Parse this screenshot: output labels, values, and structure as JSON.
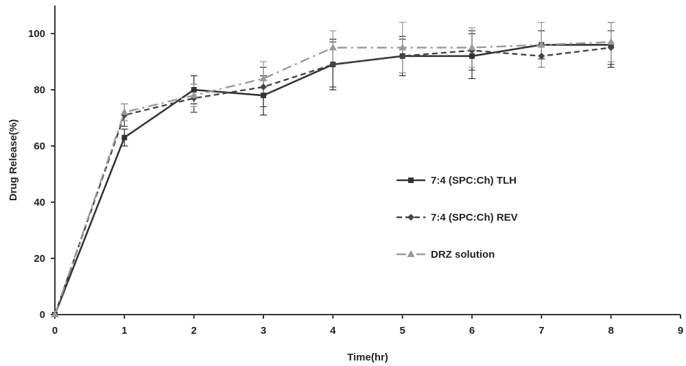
{
  "chart_data": {
    "type": "line",
    "title": "",
    "xlabel": "Time(hr)",
    "ylabel": "Drug Release(%)",
    "xlim": [
      0,
      9
    ],
    "ylim": [
      0,
      110
    ],
    "xticks": [
      0,
      1,
      2,
      3,
      4,
      5,
      6,
      7,
      8,
      9
    ],
    "yticks": [
      0,
      20,
      40,
      60,
      80,
      100
    ],
    "x": [
      0,
      1,
      2,
      3,
      4,
      5,
      6,
      7,
      8
    ],
    "grid": false,
    "legend_position": "right-center",
    "series": [
      {
        "name": "7:4 (SPC:Ch) TLH",
        "values": [
          0,
          63,
          80,
          78,
          89,
          92,
          92,
          96,
          96
        ],
        "errors": [
          0,
          3,
          5,
          7,
          9,
          7,
          8,
          5,
          8
        ],
        "color": "#333333",
        "dash": "solid",
        "marker": "square"
      },
      {
        "name": "7:4 (SPC:Ch) REV",
        "values": [
          0,
          71,
          77,
          81,
          89,
          92,
          94,
          92,
          95
        ],
        "errors": [
          0,
          4,
          5,
          7,
          8,
          6,
          7,
          4,
          6
        ],
        "color": "#444444",
        "dash": "dashed",
        "marker": "diamond"
      },
      {
        "name": "DRZ solution",
        "values": [
          0,
          72,
          78,
          84,
          95,
          95,
          95,
          96,
          97
        ],
        "errors": [
          0,
          3,
          4,
          6,
          6,
          9,
          7,
          8,
          7
        ],
        "color": "#999999",
        "dash": "dashdot",
        "marker": "triangle"
      }
    ]
  }
}
